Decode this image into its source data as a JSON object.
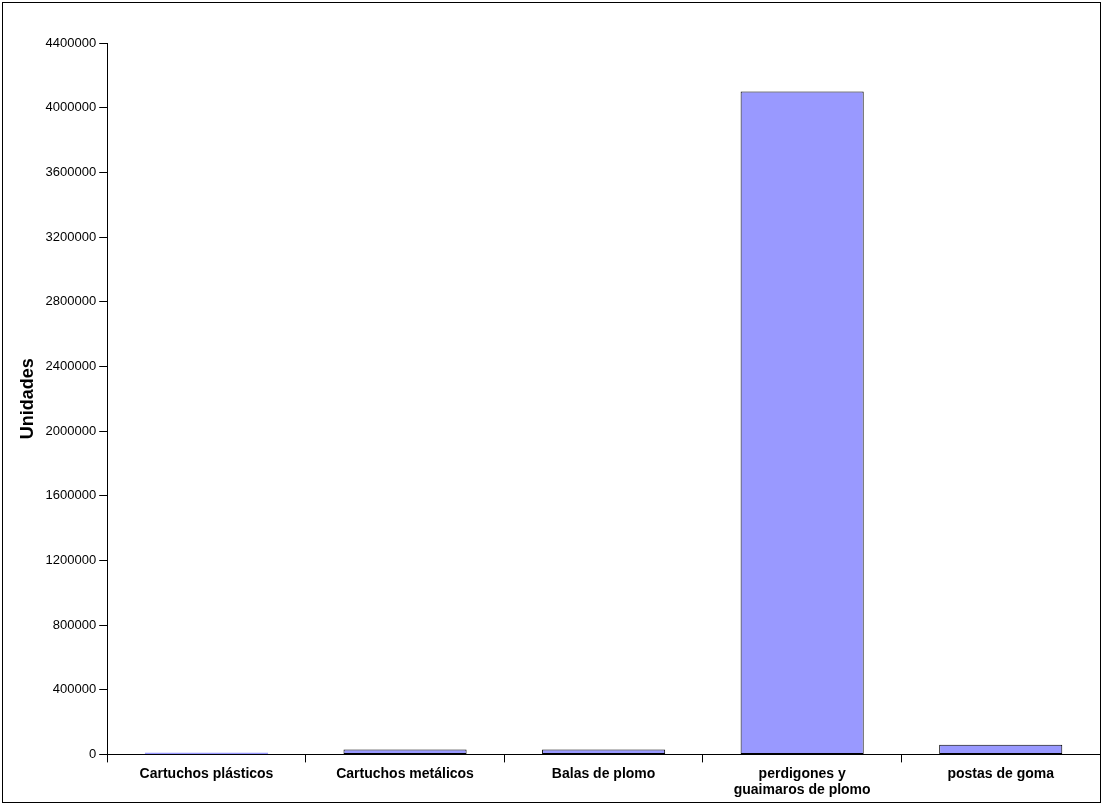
{
  "chart_data": {
    "type": "bar",
    "ylabel": "Unidades",
    "categories": [
      "Cartuchos plásticos",
      "Cartuchos metálicos",
      "Balas de plomo",
      "perdigones y guaimaros de plomo",
      "postas de goma"
    ],
    "values": [
      10000,
      30000,
      30000,
      4100000,
      60000
    ],
    "color": "#9999ff",
    "ylim": [
      0,
      4400000
    ],
    "yticks": [
      0,
      400000,
      800000,
      1200000,
      1600000,
      2000000,
      2400000,
      2800000,
      3200000,
      3600000,
      4000000,
      4400000
    ],
    "grid": false,
    "legend": false
  }
}
